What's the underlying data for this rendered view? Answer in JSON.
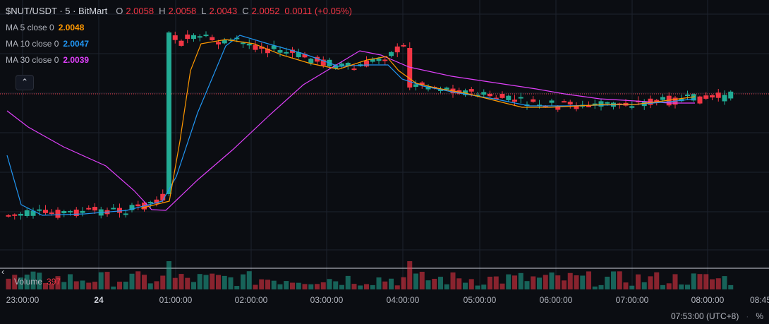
{
  "header": {
    "symbol": "$NUT/USDT · 5 · BitMart",
    "ohlc": [
      {
        "k": "O",
        "v": "2.0058"
      },
      {
        "k": "H",
        "v": "2.0058"
      },
      {
        "k": "L",
        "v": "2.0043"
      },
      {
        "k": "C",
        "v": "2.0052"
      }
    ],
    "change": "0.0011 (+0.05%)"
  },
  "indicators": [
    {
      "label": "MA 5 close 0",
      "value": "2.0048",
      "color": "#ff9800"
    },
    {
      "label": "MA 10 close 0",
      "value": "2.0047",
      "color": "#2196f3"
    },
    {
      "label": "MA 30 close 0",
      "value": "2.0039",
      "color": "#e040fb"
    }
  ],
  "collapse_icon": "chevron-up-icon",
  "volume": {
    "label": "Volume",
    "value": "397"
  },
  "time_axis": [
    "23:00:00",
    "24",
    "01:00:00",
    "02:00:00",
    "03:00:00",
    "04:00:00",
    "05:00:00",
    "06:00:00",
    "07:00:00",
    "08:00:00",
    "08:45"
  ],
  "footer": {
    "clock": "07:53:00 (UTC+8)",
    "percent": "%"
  },
  "colors": {
    "up": "#22ab94",
    "down": "#f23645",
    "background": "#0b0d12",
    "grid": "#1e222d"
  },
  "chart_data": {
    "type": "candlestick",
    "interval": "5m",
    "last_price_line": 2.0052,
    "candles_description": "Flat ~1.996-1.998 until 01:00, spike to ~2.008-2.010 at 01:00, drift down to ~2.004-2.005 by 05:00-08:00",
    "volume_series": "bars under price pane, green/red by candle direction"
  }
}
